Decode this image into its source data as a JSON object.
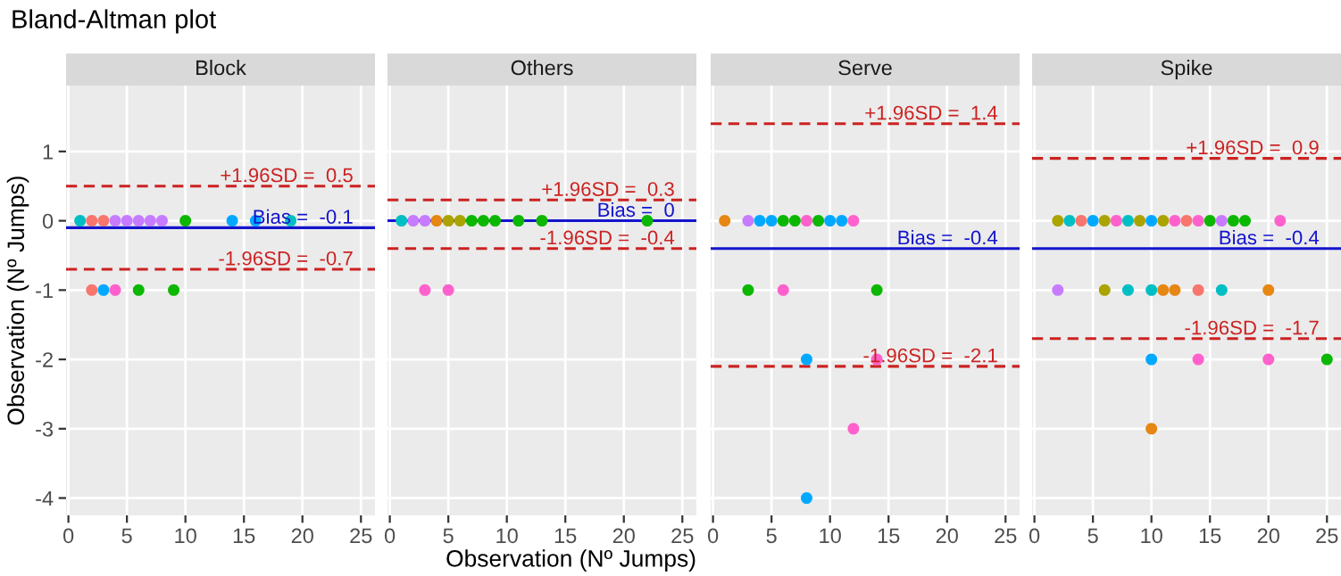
{
  "chart_data": [
    {
      "type": "scatter",
      "title": "Bland-Altman plot",
      "subtitle": "Block",
      "ylabel": "Observation (Nº Jumps)",
      "xlim": [
        -0.2,
        26.2
      ],
      "ylim": [
        -4.25,
        1.95
      ],
      "xticks": [
        0,
        5,
        10,
        15,
        20,
        25
      ],
      "yticks": [
        -4,
        -3,
        -2,
        -1,
        0,
        1
      ],
      "grid": true,
      "marker": "circle",
      "series": [
        {
          "x": [
            1,
            2,
            3,
            4,
            5,
            6,
            7,
            8,
            10,
            14,
            16,
            19,
            2,
            3,
            4,
            6,
            9
          ],
          "values": [
            0,
            0,
            0,
            0,
            0,
            0,
            0,
            0,
            0,
            0,
            0,
            0,
            -1,
            -1,
            -1,
            -1,
            -1
          ],
          "colors": [
            "#00BFC4",
            "#F8766D",
            "#F8766D",
            "#C77CFF",
            "#C77CFF",
            "#C77CFF",
            "#C77CFF",
            "#C77CFF",
            "#0CB702",
            "#00A9FF",
            "#00A9FF",
            "#00BFC4",
            "#F8766D",
            "#00A9FF",
            "#FF61CC",
            "#0CB702",
            "#0CB702"
          ]
        }
      ],
      "ref_lines": [
        {
          "axis": "y",
          "value": 0.5,
          "label": "+1.96SD =  0.5",
          "color": "#CC2222",
          "line_style": "dashed"
        },
        {
          "axis": "y",
          "value": -0.1,
          "label": "Bias =  -0.1",
          "color": "#1414CC",
          "line_style": "solid"
        },
        {
          "axis": "y",
          "value": -0.7,
          "label": "-1.96SD =  -0.7",
          "color": "#CC2222",
          "line_style": "dashed"
        }
      ]
    },
    {
      "type": "scatter",
      "subtitle": "Others",
      "xlabel": "Observation (Nº Jumps)",
      "xlim": [
        -0.2,
        26.2
      ],
      "ylim": [
        -4.25,
        1.95
      ],
      "xticks": [
        0,
        5,
        10,
        15,
        20,
        25
      ],
      "yticks": [
        -4,
        -3,
        -2,
        -1,
        0,
        1
      ],
      "tick_labels": "x",
      "grid": true,
      "marker": "circle",
      "series": [
        {
          "x": [
            1,
            2,
            3,
            4,
            5,
            6,
            7,
            8,
            9,
            11,
            13,
            22,
            3,
            5
          ],
          "values": [
            0,
            0,
            0,
            0,
            0,
            0,
            0,
            0,
            0,
            0,
            0,
            0,
            -1,
            -1
          ],
          "colors": [
            "#00BFC4",
            "#C77CFF",
            "#C77CFF",
            "#E68613",
            "#ABA300",
            "#ABA300",
            "#0CB702",
            "#0CB702",
            "#0CB702",
            "#0CB702",
            "#0CB702",
            "#0CB702",
            "#FF61CC",
            "#FF61CC"
          ]
        }
      ],
      "ref_lines": [
        {
          "axis": "y",
          "value": 0.3,
          "label": "+1.96SD =  0.3",
          "color": "#CC2222",
          "line_style": "dashed"
        },
        {
          "axis": "y",
          "value": 0,
          "label": "Bias =  0",
          "color": "#1414CC",
          "line_style": "solid"
        },
        {
          "axis": "y",
          "value": -0.4,
          "label": "-1.96SD =  -0.4",
          "color": "#CC2222",
          "line_style": "dashed"
        }
      ]
    },
    {
      "type": "scatter",
      "subtitle": "Serve",
      "xlim": [
        -0.2,
        26.2
      ],
      "ylim": [
        -4.25,
        1.95
      ],
      "xticks": [
        0,
        5,
        10,
        15,
        20,
        25
      ],
      "yticks": [
        -4,
        -3,
        -2,
        -1,
        0,
        1
      ],
      "tick_labels": "x",
      "grid": true,
      "marker": "circle",
      "series": [
        {
          "x": [
            1,
            3,
            4,
            5,
            6,
            7,
            8,
            9,
            10,
            11,
            12,
            3,
            6,
            14,
            8,
            14,
            12,
            8
          ],
          "values": [
            0,
            0,
            0,
            0,
            0,
            0,
            0,
            0,
            0,
            0,
            0,
            -1,
            -1,
            -1,
            -2,
            -2,
            -3,
            -4
          ],
          "colors": [
            "#E68613",
            "#C77CFF",
            "#00A9FF",
            "#00A9FF",
            "#0CB702",
            "#0CB702",
            "#FF61CC",
            "#0CB702",
            "#00A9FF",
            "#00A9FF",
            "#FF61CC",
            "#0CB702",
            "#FF61CC",
            "#0CB702",
            "#00A9FF",
            "#FF61CC",
            "#FF61CC",
            "#00A9FF"
          ]
        }
      ],
      "ref_lines": [
        {
          "axis": "y",
          "value": 1.4,
          "label": "+1.96SD =  1.4",
          "color": "#CC2222",
          "line_style": "dashed"
        },
        {
          "axis": "y",
          "value": -0.4,
          "label": "Bias =  -0.4",
          "color": "#1414CC",
          "line_style": "solid"
        },
        {
          "axis": "y",
          "value": -2.1,
          "label": "-1.96SD =  -2.1",
          "color": "#CC2222",
          "line_style": "dashed"
        }
      ]
    },
    {
      "type": "scatter",
      "subtitle": "Spike",
      "xlim": [
        -0.2,
        26.2
      ],
      "ylim": [
        -4.25,
        1.95
      ],
      "xticks": [
        0,
        5,
        10,
        15,
        20,
        25
      ],
      "yticks": [
        -4,
        -3,
        -2,
        -1,
        0,
        1
      ],
      "tick_labels": "x",
      "grid": true,
      "marker": "circle",
      "series": [
        {
          "x": [
            2,
            3,
            4,
            5,
            6,
            7,
            8,
            9,
            10,
            11,
            12,
            13,
            14,
            15,
            16,
            17,
            18,
            21,
            2,
            6,
            8,
            10,
            11,
            12,
            14,
            16,
            20,
            10,
            14,
            20,
            25,
            10
          ],
          "values": [
            0,
            0,
            0,
            0,
            0,
            0,
            0,
            0,
            0,
            0,
            0,
            0,
            0,
            0,
            0,
            0,
            0,
            0,
            -1,
            -1,
            -1,
            -1,
            -1,
            -1,
            -1,
            -1,
            -1,
            -2,
            -2,
            -2,
            -2,
            -3
          ],
          "colors": [
            "#ABA300",
            "#00BFC4",
            "#F8766D",
            "#00A9FF",
            "#ABA300",
            "#FF61CC",
            "#00BFC4",
            "#ABA300",
            "#00A9FF",
            "#ABA300",
            "#FF61CC",
            "#F8766D",
            "#FF61CC",
            "#0CB702",
            "#C77CFF",
            "#0CB702",
            "#0CB702",
            "#FF61CC",
            "#C77CFF",
            "#ABA300",
            "#00BFC4",
            "#00BFC4",
            "#E68613",
            "#E68613",
            "#F8766D",
            "#00BFC4",
            "#E68613",
            "#00A9FF",
            "#FF61CC",
            "#FF61CC",
            "#0CB702",
            "#E68613"
          ]
        }
      ],
      "ref_lines": [
        {
          "axis": "y",
          "value": 0.9,
          "label": "+1.96SD =  0.9",
          "color": "#CC2222",
          "line_style": "dashed"
        },
        {
          "axis": "y",
          "value": -0.4,
          "label": "Bias =  -0.4",
          "color": "#1414CC",
          "line_style": "solid"
        },
        {
          "axis": "y",
          "value": -1.7,
          "label": "-1.96SD =  -1.7",
          "color": "#CC2222",
          "line_style": "dashed"
        }
      ]
    }
  ]
}
